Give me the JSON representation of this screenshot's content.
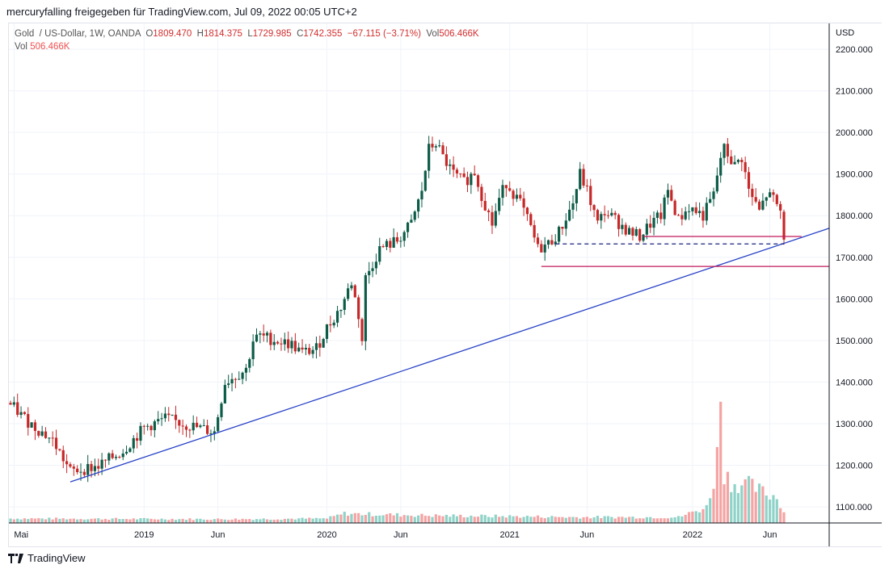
{
  "title": "mercuryfalling freigegeben für TradingView.com, Jul 09, 2022 00:05 UTC+2",
  "legend": {
    "symbol": "Gold  / US-Dollar, 1W, OANDA",
    "o_label": "O",
    "o": "1809.470",
    "h_label": "H",
    "h": "1814.375",
    "l_label": "L",
    "l": "1729.985",
    "c_label": "C",
    "c": "1742.355",
    "change": "−67.115 (−3.71%)",
    "vol_label": "Vol",
    "vol": "506.466K",
    "vol2_label": "Vol",
    "vol2": "506.466K"
  },
  "brand": "TradingView",
  "colors": {
    "up": "#0d5c48",
    "down": "#c62828",
    "vol_up": "#8fd3c8",
    "vol_down": "#f5a3a3",
    "trend": "#2742c7",
    "support": "#c2185b",
    "dashed": "#1a237e",
    "grid": "#f0f3fa"
  },
  "chart_data": {
    "type": "candlestick",
    "currency": "USD",
    "ylim": [
      1060,
      2240
    ],
    "yticks": [
      1100,
      1200,
      1300,
      1400,
      1500,
      1600,
      1700,
      1800,
      1900,
      2000,
      2100,
      2200
    ],
    "ytick_labels": [
      "1100.000",
      "1200.000",
      "1300.000",
      "1400.000",
      "1500.000",
      "1600.000",
      "1700.000",
      "1800.000",
      "1900.000",
      "2000.000",
      "2100.000",
      "2200.000"
    ],
    "weeks_total": 221,
    "xticks": [
      {
        "week": 1,
        "label": "Mai"
      },
      {
        "week": 38,
        "label": "2019"
      },
      {
        "week": 59,
        "label": "Jun"
      },
      {
        "week": 90,
        "label": "2020"
      },
      {
        "week": 111,
        "label": "Jun"
      },
      {
        "week": 142,
        "label": "2021"
      },
      {
        "week": 164,
        "label": "Jun"
      },
      {
        "week": 194,
        "label": "2022"
      },
      {
        "week": 216,
        "label": "Jun"
      }
    ],
    "close_keypoints": [
      [
        0,
        1345
      ],
      [
        5,
        1305
      ],
      [
        12,
        1260
      ],
      [
        16,
        1200
      ],
      [
        17,
        1185
      ],
      [
        25,
        1198
      ],
      [
        32,
        1235
      ],
      [
        38,
        1290
      ],
      [
        44,
        1312
      ],
      [
        51,
        1295
      ],
      [
        58,
        1280
      ],
      [
        61,
        1400
      ],
      [
        67,
        1430
      ],
      [
        69,
        1500
      ],
      [
        71,
        1510
      ],
      [
        80,
        1490
      ],
      [
        83,
        1470
      ],
      [
        87,
        1480
      ],
      [
        90,
        1530
      ],
      [
        94,
        1580
      ],
      [
        97,
        1640
      ],
      [
        99,
        1560
      ],
      [
        100,
        1500
      ],
      [
        101,
        1650
      ],
      [
        105,
        1720
      ],
      [
        110,
        1740
      ],
      [
        114,
        1780
      ],
      [
        117,
        1860
      ],
      [
        119,
        1960
      ],
      [
        121,
        1975
      ],
      [
        123,
        1940
      ],
      [
        126,
        1900
      ],
      [
        129,
        1880
      ],
      [
        132,
        1905
      ],
      [
        134,
        1850
      ],
      [
        137,
        1780
      ],
      [
        139,
        1840
      ],
      [
        141,
        1880
      ],
      [
        145,
        1830
      ],
      [
        148,
        1770
      ],
      [
        150,
        1720
      ],
      [
        153,
        1732
      ],
      [
        156,
        1760
      ],
      [
        160,
        1830
      ],
      [
        162,
        1900
      ],
      [
        164,
        1860
      ],
      [
        167,
        1780
      ],
      [
        169,
        1810
      ],
      [
        172,
        1790
      ],
      [
        176,
        1760
      ],
      [
        179,
        1750
      ],
      [
        182,
        1780
      ],
      [
        185,
        1800
      ],
      [
        187,
        1860
      ],
      [
        190,
        1790
      ],
      [
        193,
        1820
      ],
      [
        197,
        1800
      ],
      [
        200,
        1850
      ],
      [
        202,
        1940
      ],
      [
        203,
        1960
      ],
      [
        206,
        1920
      ],
      [
        208,
        1940
      ],
      [
        210,
        1860
      ],
      [
        213,
        1810
      ],
      [
        215,
        1850
      ],
      [
        217,
        1840
      ],
      [
        219,
        1810
      ],
      [
        220,
        1742
      ]
    ],
    "last_candle": {
      "o": 1809.47,
      "h": 1814.375,
      "l": 1729.985,
      "c": 1742.355
    },
    "volume_keypoints_k": [
      [
        0,
        200
      ],
      [
        60,
        170
      ],
      [
        90,
        200
      ],
      [
        95,
        420
      ],
      [
        105,
        380
      ],
      [
        120,
        330
      ],
      [
        140,
        300
      ],
      [
        160,
        260
      ],
      [
        190,
        260
      ],
      [
        198,
        700
      ],
      [
        200,
        1900
      ],
      [
        201,
        3000
      ],
      [
        202,
        5700
      ],
      [
        203,
        2300
      ],
      [
        205,
        1800
      ],
      [
        210,
        1700
      ],
      [
        215,
        1300
      ],
      [
        218,
        1150
      ],
      [
        220,
        506.466
      ]
    ],
    "annotations": [
      {
        "type": "trendline",
        "from": {
          "week": 17,
          "price": 1160
        },
        "to": {
          "week": 233,
          "price": 1770
        },
        "color": "trend"
      },
      {
        "type": "hline",
        "price": 1678,
        "from_week": 151,
        "color": "support"
      },
      {
        "type": "hline_dashed",
        "price": 1732,
        "from_week": 155,
        "to_week": 220,
        "color": "dashed"
      },
      {
        "type": "hline",
        "price": 1750,
        "from_week": 180,
        "to_week": 225,
        "color": "support"
      }
    ]
  }
}
